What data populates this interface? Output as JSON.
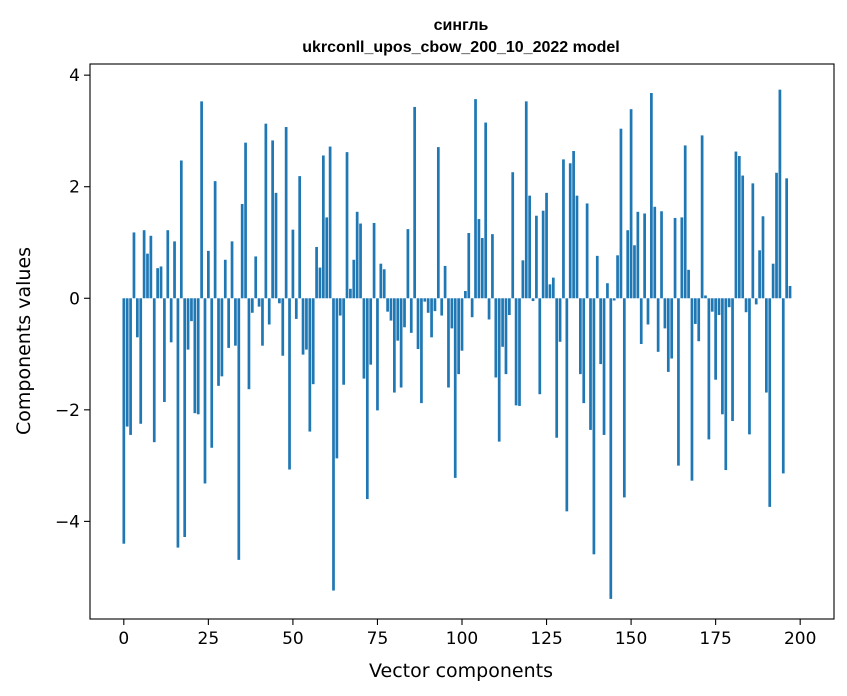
{
  "chart_data": {
    "type": "bar",
    "title": "сингль",
    "subtitle": "ukrconll_upos_cbow_200_10_2022 model",
    "xlabel": "Vector components",
    "ylabel": "Components values",
    "xlim": [
      -10,
      210
    ],
    "ylim": [
      -5.75,
      4.2
    ],
    "xticks": [
      0,
      25,
      50,
      75,
      100,
      125,
      150,
      175,
      200
    ],
    "yticks": [
      -4,
      -2,
      0,
      2,
      4
    ],
    "xtick_labels": [
      "0",
      "25",
      "50",
      "75",
      "100",
      "125",
      "150",
      "175",
      "200"
    ],
    "ytick_labels": [
      "−4",
      "−2",
      "0",
      "2",
      "4"
    ],
    "bar_color": "#1f77b4",
    "grid": false,
    "values": [
      -4.4,
      -2.3,
      -2.45,
      1.18,
      -0.7,
      -2.25,
      1.22,
      0.8,
      1.12,
      -2.58,
      0.54,
      0.57,
      -1.86,
      1.22,
      -0.79,
      1.02,
      -4.47,
      2.47,
      -4.28,
      -0.92,
      -0.41,
      -2.06,
      -2.08,
      3.53,
      -3.32,
      0.85,
      -2.68,
      2.1,
      -1.57,
      -1.4,
      0.69,
      -0.89,
      1.02,
      -0.85,
      -4.69,
      1.69,
      2.79,
      -1.63,
      -0.26,
      0.75,
      -0.15,
      -0.85,
      3.13,
      -0.47,
      2.83,
      1.89,
      -0.09,
      -1.03,
      3.07,
      -3.07,
      1.23,
      -0.37,
      2.19,
      -1.01,
      -0.92,
      -2.39,
      -1.54,
      0.92,
      0.55,
      2.56,
      1.45,
      2.72,
      -5.24,
      -2.87,
      -0.31,
      -1.55,
      2.62,
      0.17,
      0.69,
      1.55,
      1.34,
      -1.44,
      -3.6,
      -1.19,
      1.35,
      -2.01,
      0.62,
      0.52,
      -0.24,
      -0.4,
      -1.69,
      -0.76,
      -1.6,
      -0.52,
      1.24,
      -0.62,
      3.43,
      -0.91,
      -1.88,
      -0.06,
      -0.26,
      -0.7,
      -0.23,
      2.71,
      -0.31,
      0.58,
      -1.6,
      -0.54,
      -3.22,
      -1.36,
      -0.94,
      0.13,
      1.17,
      -0.34,
      3.57,
      1.42,
      1.08,
      3.15,
      -0.38,
      1.15,
      -1.42,
      -2.57,
      -0.87,
      -1.36,
      -0.3,
      2.26,
      -1.92,
      -1.93,
      0.68,
      3.53,
      1.84,
      -0.05,
      1.48,
      -1.72,
      1.57,
      1.89,
      0.25,
      0.37,
      -2.5,
      -0.78,
      2.49,
      -3.82,
      2.42,
      2.64,
      1.84,
      -1.36,
      -1.88,
      1.7,
      -2.36,
      -4.59,
      0.76,
      -1.18,
      -2.45,
      0.27,
      -5.39,
      -0.04,
      0.77,
      3.04,
      -3.57,
      1.22,
      3.39,
      0.95,
      1.55,
      -0.82,
      1.52,
      -0.47,
      3.68,
      1.64,
      -0.96,
      1.56,
      -0.54,
      -1.32,
      -1.08,
      1.44,
      -3.0,
      1.45,
      2.74,
      0.51,
      -3.27,
      -0.46,
      -0.77,
      2.92,
      0.05,
      -2.53,
      -0.24,
      -1.46,
      -0.3,
      -2.08,
      -3.08,
      -0.16,
      -2.2,
      2.63,
      2.55,
      2.2,
      -0.25,
      -2.44,
      2.06,
      -0.11,
      0.86,
      1.47,
      -1.69,
      -3.74,
      0.62,
      2.25,
      3.74,
      -3.14,
      2.15,
      0.22
    ]
  }
}
